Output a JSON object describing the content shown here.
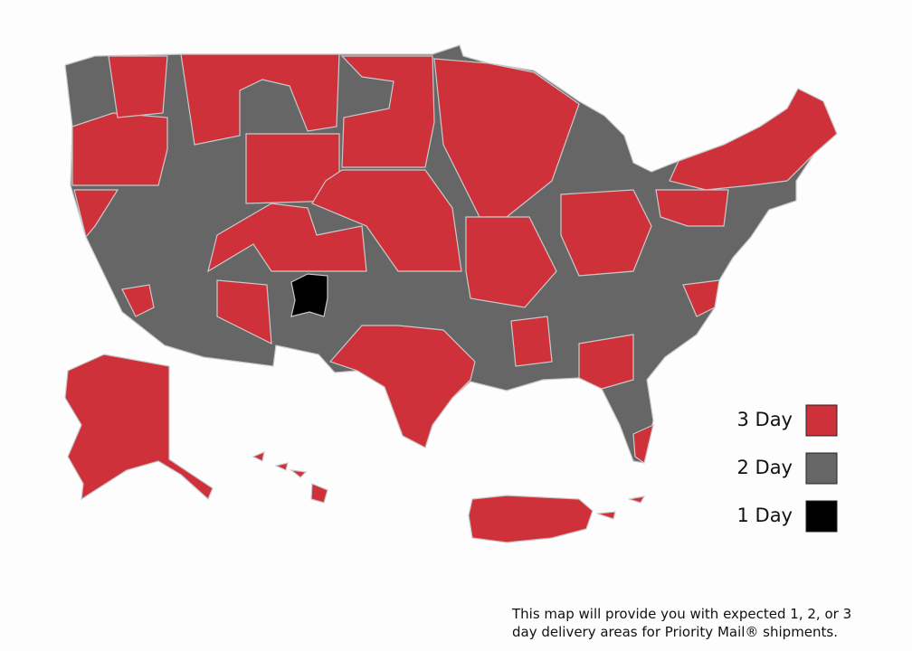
{
  "legend": {
    "items": [
      {
        "label": "3 Day",
        "color": "#cf313b"
      },
      {
        "label": "2 Day",
        "color": "#666666"
      },
      {
        "label": "1 Day",
        "color": "#000000"
      }
    ]
  },
  "caption": {
    "lines": [
      "This map will provide you with expected 1, 2, or 3",
      "day delivery areas for Priority Mail® shipments."
    ]
  }
}
